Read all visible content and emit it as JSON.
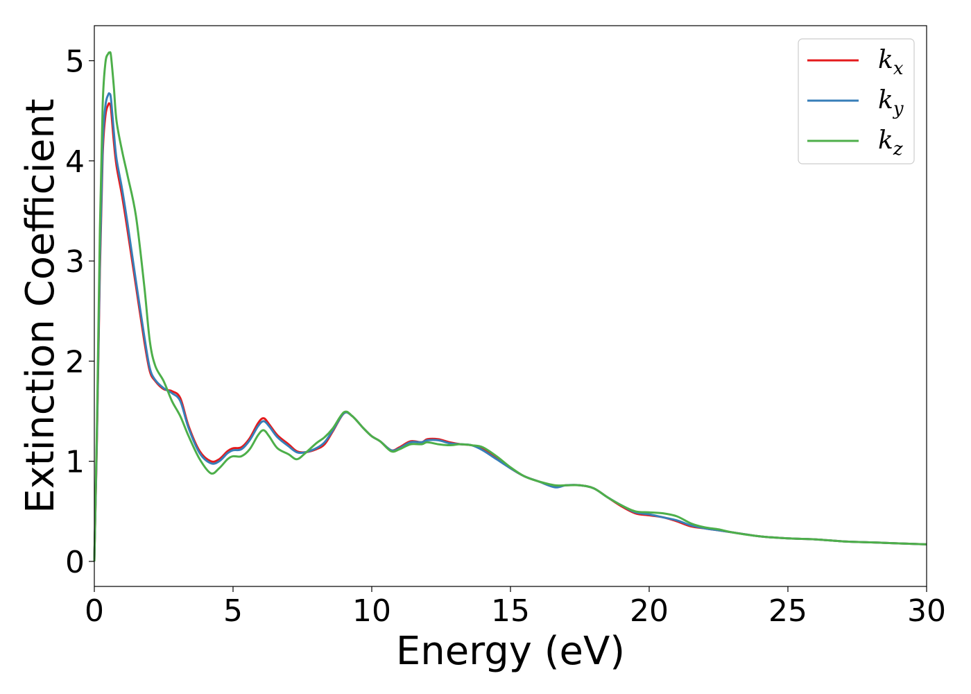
{
  "chart_data": {
    "type": "line",
    "title": "",
    "xlabel": "Energy (eV)",
    "ylabel": "Extinction Coefficient",
    "xlim": [
      0,
      30
    ],
    "ylim": [
      -0.25,
      5.35
    ],
    "xticks": [
      0,
      5,
      10,
      15,
      20,
      25,
      30
    ],
    "yticks": [
      0,
      1,
      2,
      3,
      4,
      5
    ],
    "grid": false,
    "legend_position": "top-right",
    "series": [
      {
        "name": "k",
        "subscript": "x",
        "color": "#e41a1c",
        "x": [
          0.0,
          0.1,
          0.2,
          0.3,
          0.4,
          0.5,
          0.55,
          0.6,
          0.7,
          0.8,
          1.0,
          1.2,
          1.5,
          1.8,
          2.0,
          2.2,
          2.5,
          2.8,
          3.1,
          3.4,
          3.8,
          4.2,
          4.5,
          4.8,
          5.0,
          5.3,
          5.6,
          5.9,
          6.1,
          6.3,
          6.6,
          7.0,
          7.3,
          7.6,
          8.0,
          8.3,
          8.6,
          9.0,
          9.3,
          9.7,
          10.0,
          10.3,
          10.7,
          11.0,
          11.4,
          11.8,
          12.0,
          12.4,
          12.8,
          13.2,
          13.6,
          14.0,
          14.5,
          15.0,
          15.5,
          16.0,
          16.6,
          17.0,
          17.5,
          18.0,
          18.5,
          19.0,
          19.5,
          20.0,
          20.5,
          21.0,
          21.5,
          22.0,
          22.5,
          23.0,
          24.0,
          25.0,
          26.0,
          27.0,
          28.0,
          29.0,
          30.0
        ],
        "y": [
          0.0,
          1.3,
          2.9,
          4.05,
          4.45,
          4.56,
          4.57,
          4.52,
          4.2,
          3.95,
          3.65,
          3.3,
          2.75,
          2.2,
          1.9,
          1.8,
          1.72,
          1.7,
          1.63,
          1.35,
          1.1,
          1.0,
          1.02,
          1.1,
          1.13,
          1.14,
          1.23,
          1.38,
          1.43,
          1.37,
          1.26,
          1.17,
          1.1,
          1.09,
          1.12,
          1.17,
          1.3,
          1.48,
          1.45,
          1.33,
          1.25,
          1.2,
          1.11,
          1.14,
          1.2,
          1.19,
          1.22,
          1.22,
          1.19,
          1.17,
          1.16,
          1.12,
          1.03,
          0.93,
          0.85,
          0.8,
          0.75,
          0.76,
          0.76,
          0.73,
          0.64,
          0.55,
          0.48,
          0.46,
          0.44,
          0.4,
          0.35,
          0.33,
          0.31,
          0.29,
          0.25,
          0.23,
          0.22,
          0.2,
          0.19,
          0.18,
          0.17
        ]
      },
      {
        "name": "k",
        "subscript": "y",
        "color": "#377eb8",
        "x": [
          0.0,
          0.1,
          0.2,
          0.3,
          0.4,
          0.5,
          0.55,
          0.6,
          0.7,
          0.8,
          1.0,
          1.2,
          1.5,
          1.8,
          2.0,
          2.2,
          2.5,
          2.8,
          3.1,
          3.4,
          3.8,
          4.2,
          4.5,
          4.8,
          5.0,
          5.3,
          5.6,
          5.9,
          6.1,
          6.3,
          6.6,
          7.0,
          7.3,
          7.6,
          8.0,
          8.3,
          8.6,
          9.0,
          9.3,
          9.7,
          10.0,
          10.3,
          10.7,
          11.0,
          11.4,
          11.8,
          12.0,
          12.4,
          12.8,
          13.2,
          13.6,
          14.0,
          14.5,
          15.0,
          15.5,
          16.0,
          16.6,
          17.0,
          17.5,
          18.0,
          18.5,
          19.0,
          19.5,
          20.0,
          20.5,
          21.0,
          21.5,
          22.0,
          22.5,
          23.0,
          24.0,
          25.0,
          26.0,
          27.0,
          28.0,
          29.0,
          30.0
        ],
        "y": [
          0.0,
          1.35,
          3.0,
          4.15,
          4.55,
          4.66,
          4.67,
          4.62,
          4.3,
          4.02,
          3.72,
          3.37,
          2.8,
          2.25,
          1.93,
          1.81,
          1.73,
          1.68,
          1.6,
          1.33,
          1.08,
          0.98,
          1.0,
          1.08,
          1.11,
          1.12,
          1.21,
          1.35,
          1.4,
          1.35,
          1.24,
          1.15,
          1.09,
          1.09,
          1.13,
          1.19,
          1.31,
          1.48,
          1.45,
          1.33,
          1.25,
          1.2,
          1.11,
          1.13,
          1.19,
          1.19,
          1.21,
          1.21,
          1.18,
          1.17,
          1.16,
          1.11,
          1.02,
          0.93,
          0.85,
          0.8,
          0.74,
          0.76,
          0.76,
          0.73,
          0.64,
          0.56,
          0.49,
          0.47,
          0.44,
          0.41,
          0.36,
          0.33,
          0.31,
          0.29,
          0.25,
          0.23,
          0.22,
          0.2,
          0.19,
          0.18,
          0.17
        ]
      },
      {
        "name": "k",
        "subscript": "z",
        "color": "#4daf4a",
        "x": [
          0.0,
          0.1,
          0.2,
          0.3,
          0.4,
          0.5,
          0.55,
          0.6,
          0.7,
          0.8,
          1.0,
          1.2,
          1.5,
          1.8,
          2.0,
          2.2,
          2.5,
          2.8,
          3.1,
          3.4,
          3.8,
          4.2,
          4.5,
          4.8,
          5.0,
          5.3,
          5.6,
          5.9,
          6.1,
          6.3,
          6.6,
          7.0,
          7.3,
          7.6,
          8.0,
          8.3,
          8.6,
          9.0,
          9.3,
          9.7,
          10.0,
          10.3,
          10.7,
          11.0,
          11.4,
          11.8,
          12.0,
          12.4,
          12.8,
          13.2,
          13.6,
          14.0,
          14.5,
          15.0,
          15.5,
          16.0,
          16.6,
          17.0,
          17.5,
          18.0,
          18.5,
          19.0,
          19.5,
          20.0,
          20.5,
          21.0,
          21.5,
          22.0,
          22.5,
          23.0,
          24.0,
          25.0,
          26.0,
          27.0,
          28.0,
          29.0,
          30.0
        ],
        "y": [
          0.0,
          1.45,
          3.3,
          4.55,
          4.98,
          5.07,
          5.08,
          5.05,
          4.75,
          4.4,
          4.1,
          3.85,
          3.45,
          2.75,
          2.2,
          1.95,
          1.8,
          1.6,
          1.45,
          1.25,
          1.02,
          0.88,
          0.93,
          1.02,
          1.05,
          1.05,
          1.12,
          1.26,
          1.31,
          1.25,
          1.13,
          1.07,
          1.02,
          1.08,
          1.18,
          1.24,
          1.33,
          1.49,
          1.45,
          1.33,
          1.25,
          1.2,
          1.1,
          1.12,
          1.17,
          1.17,
          1.19,
          1.17,
          1.16,
          1.17,
          1.16,
          1.14,
          1.05,
          0.94,
          0.85,
          0.8,
          0.76,
          0.76,
          0.76,
          0.73,
          0.64,
          0.56,
          0.5,
          0.49,
          0.48,
          0.45,
          0.38,
          0.34,
          0.32,
          0.29,
          0.25,
          0.23,
          0.22,
          0.2,
          0.19,
          0.18,
          0.17
        ]
      }
    ]
  }
}
